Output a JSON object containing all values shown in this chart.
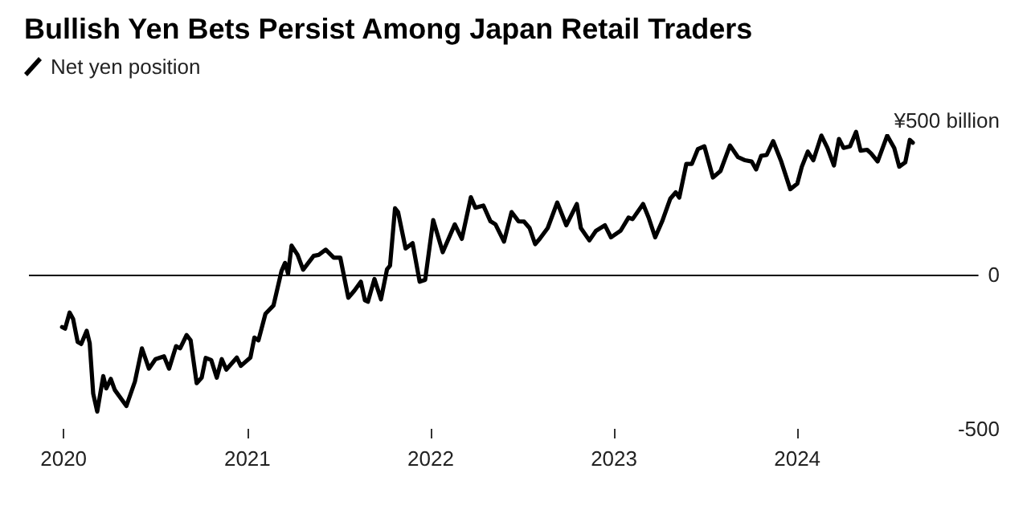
{
  "chart_data": {
    "type": "line",
    "title": "Bullish Yen Bets Persist Among Japan Retail Traders",
    "x": [
      "2019-12-29",
      "2020-01-04",
      "2020-01-13",
      "2020-01-20",
      "2020-01-29",
      "2020-02-05",
      "2020-02-16",
      "2020-02-22",
      "2020-02-29",
      "2020-03-08",
      "2020-03-20",
      "2020-03-26",
      "2020-04-04",
      "2020-04-12",
      "2020-05-05",
      "2020-05-22",
      "2020-06-05",
      "2020-06-19",
      "2020-07-02",
      "2020-07-19",
      "2020-07-29",
      "2020-08-12",
      "2020-08-20",
      "2020-09-02",
      "2020-09-10",
      "2020-09-22",
      "2020-10-02",
      "2020-10-10",
      "2020-10-21",
      "2020-11-01",
      "2020-11-11",
      "2020-11-20",
      "2020-12-11",
      "2020-12-19",
      "2021-01-07",
      "2021-01-15",
      "2021-01-23",
      "2021-02-06",
      "2021-02-22",
      "2021-03-10",
      "2021-03-17",
      "2021-03-23",
      "2021-03-30",
      "2021-04-11",
      "2021-04-22",
      "2021-05-13",
      "2021-05-23",
      "2021-06-06",
      "2021-06-22",
      "2021-07-05",
      "2021-07-21",
      "2021-08-02",
      "2021-08-15",
      "2021-08-23",
      "2021-08-29",
      "2021-09-11",
      "2021-09-24",
      "2021-10-06",
      "2021-10-12",
      "2021-10-22",
      "2021-10-28",
      "2021-11-12",
      "2021-11-26",
      "2021-12-10",
      "2021-12-21",
      "2022-01-06",
      "2022-01-25",
      "2022-02-18",
      "2022-03-04",
      "2022-03-22",
      "2022-03-31",
      "2022-04-16",
      "2022-04-30",
      "2022-05-10",
      "2022-05-27",
      "2022-06-11",
      "2022-06-25",
      "2022-07-06",
      "2022-07-17",
      "2022-07-28",
      "2022-08-06",
      "2022-08-22",
      "2022-09-10",
      "2022-09-28",
      "2022-10-19",
      "2022-10-27",
      "2022-11-13",
      "2022-11-26",
      "2022-12-14",
      "2022-12-26",
      "2023-01-14",
      "2023-01-30",
      "2023-02-07",
      "2023-02-28",
      "2023-03-11",
      "2023-03-24",
      "2023-04-07",
      "2023-04-23",
      "2023-05-04",
      "2023-05-11",
      "2023-05-25",
      "2023-06-05",
      "2023-06-17",
      "2023-06-30",
      "2023-07-17",
      "2023-08-01",
      "2023-08-20",
      "2023-09-05",
      "2023-09-19",
      "2023-10-02",
      "2023-10-11",
      "2023-10-21",
      "2023-11-01",
      "2023-11-14",
      "2023-11-30",
      "2023-12-18",
      "2024-01-01",
      "2024-01-10",
      "2024-01-22",
      "2024-02-02",
      "2024-02-18",
      "2024-03-01",
      "2024-03-14",
      "2024-03-24",
      "2024-04-02",
      "2024-04-15",
      "2024-04-27",
      "2024-05-06",
      "2024-05-19",
      "2024-05-27",
      "2024-06-09",
      "2024-06-28",
      "2024-07-12",
      "2024-07-22",
      "2024-08-03",
      "2024-08-12",
      "2024-08-18"
    ],
    "series": [
      {
        "name": "Net yen position",
        "color": "#000000",
        "values": [
          -170,
          -175,
          -123,
          -144,
          -218,
          -225,
          -182,
          -222,
          -386,
          -444,
          -329,
          -369,
          -338,
          -374,
          -426,
          -347,
          -239,
          -305,
          -274,
          -265,
          -305,
          -232,
          -239,
          -196,
          -213,
          -352,
          -334,
          -270,
          -277,
          -334,
          -274,
          -308,
          -269,
          -296,
          -269,
          -204,
          -213,
          -127,
          -100,
          12,
          38,
          3,
          94,
          64,
          16,
          61,
          64,
          81,
          55,
          55,
          -75,
          -52,
          -23,
          -83,
          -88,
          -14,
          -80,
          17,
          29,
          215,
          203,
          85,
          102,
          -23,
          -17,
          177,
          73,
          163,
          116,
          251,
          217,
          224,
          173,
          163,
          107,
          203,
          173,
          172,
          151,
          99,
          116,
          151,
          234,
          160,
          229,
          151,
          111,
          142,
          160,
          121,
          142,
          185,
          180,
          229,
          185,
          121,
          173,
          246,
          267,
          250,
          359,
          359,
          407,
          416,
          315,
          336,
          419,
          381,
          371,
          367,
          341,
          385,
          388,
          433,
          367,
          277,
          295,
          350,
          399,
          371,
          451,
          411,
          354,
          440,
          411,
          416,
          463,
          402,
          405,
          393,
          367,
          451,
          411,
          350,
          364,
          437,
          428
        ]
      }
    ],
    "xlim": [
      "2019-10-24",
      "2025-02-07"
    ],
    "xticks": [
      {
        "value": "2020-01-01",
        "label": "2020"
      },
      {
        "value": "2021-01-01",
        "label": "2021"
      },
      {
        "value": "2022-01-01",
        "label": "2022"
      },
      {
        "value": "2023-01-01",
        "label": "2023"
      },
      {
        "value": "2024-01-01",
        "label": "2024"
      }
    ],
    "ylim": [
      -500,
      500
    ],
    "yticks": [
      {
        "value": 500,
        "label": "¥500 billion"
      },
      0,
      -500
    ],
    "ref_lines": [
      {
        "axis": "y",
        "value": 0,
        "color": "#000000"
      }
    ],
    "grid": false,
    "legend": "top left",
    "marker": "none",
    "line_style": "solid"
  }
}
